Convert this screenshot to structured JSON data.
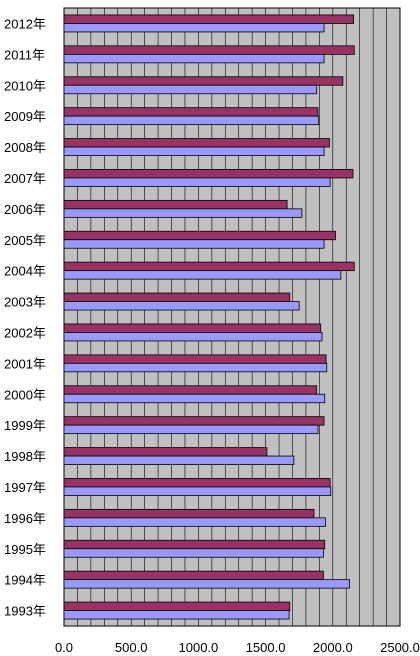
{
  "colors": {
    "plot_background": "#c0c0c0",
    "gridline": "#000000",
    "series_a": "#993366",
    "series_b": "#9999ff",
    "bar_edge": "#000000"
  },
  "chart_data": {
    "type": "bar",
    "orientation": "horizontal",
    "grid": true,
    "legend": "none",
    "categories": [
      "2012年",
      "2011年",
      "2010年",
      "2009年",
      "2008年",
      "2007年",
      "2006年",
      "2005年",
      "2004年",
      "2003年",
      "2002年",
      "2001年",
      "2000年",
      "1999年",
      "1998年",
      "1997年",
      "1996年",
      "1995年",
      "1994年",
      "1993年"
    ],
    "xlim": [
      0,
      2500
    ],
    "x_ticks": [
      "0.0",
      "500.0",
      "1000.0",
      "1500.0",
      "2000.0",
      "2500.0"
    ],
    "x_tick_values": [
      0,
      500,
      1000,
      1500,
      2000,
      2500
    ],
    "series": [
      {
        "color": "#993366",
        "values": [
          2155,
          2160,
          2075,
          1890,
          1975,
          2150,
          1660,
          2020,
          2160,
          1680,
          1910,
          1950,
          1880,
          1935,
          1510,
          1980,
          1860,
          1940,
          1930,
          1680
        ]
      },
      {
        "color": "#9999ff",
        "values": [
          1935,
          1935,
          1880,
          1895,
          1935,
          1980,
          1770,
          1935,
          2060,
          1750,
          1920,
          1955,
          1940,
          1890,
          1710,
          1985,
          1945,
          1930,
          2125,
          1675
        ]
      }
    ]
  }
}
